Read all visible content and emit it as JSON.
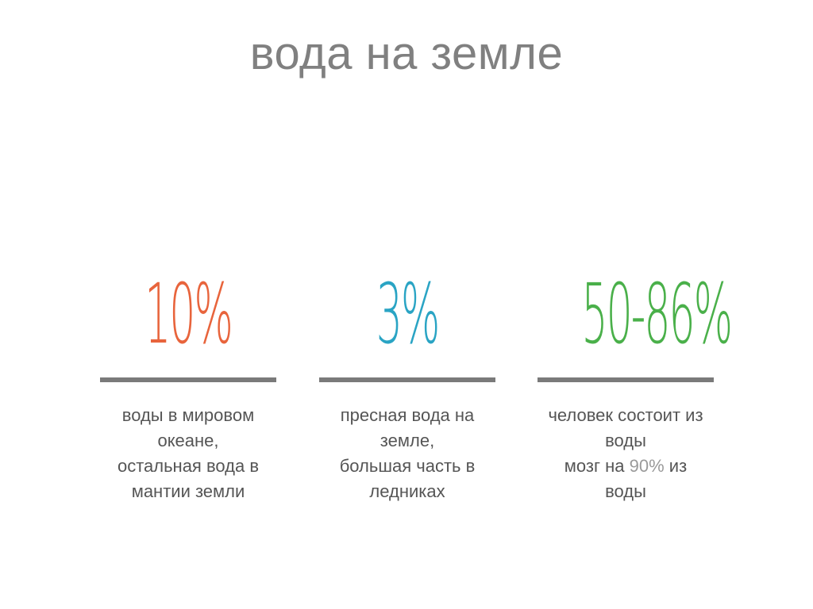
{
  "title": "вода на земле",
  "colors": {
    "title": "#808080",
    "divider": "#7a7a7a",
    "text": "#555555",
    "highlight": "#9a9a9a"
  },
  "stats": [
    {
      "value": "10%",
      "color": "#e8643c",
      "lines": [
        "воды в мировом",
        "океане,",
        "остальная вода в",
        "мантии земли"
      ]
    },
    {
      "value": "3%",
      "color": "#2aa4c4",
      "lines": [
        "пресная вода на",
        "земле,",
        "большая часть в",
        "ледниках"
      ]
    },
    {
      "value": "50-86%",
      "color": "#4ab04a",
      "lines": [
        "человек состоит из",
        "воды"
      ],
      "line3": {
        "before": "мозг на ",
        "highlight": "90%",
        "after": " из"
      },
      "line4": "воды"
    }
  ]
}
